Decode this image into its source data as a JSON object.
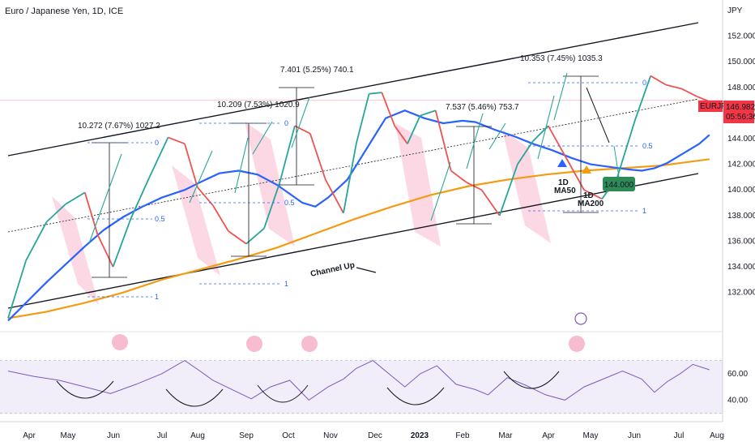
{
  "header": {
    "title": "Euro / Japanese Yen, 1D, ICE"
  },
  "chart_data": {
    "type": "line",
    "symbol": "EURJPY",
    "currency_label": "JPY",
    "price_axis": {
      "range": [
        129.2,
        154.5
      ],
      "ticks": [
        "152.000",
        "150.000",
        "148.000",
        "146.000",
        "144.000",
        "142.000",
        "140.000",
        "138.000",
        "136.000",
        "134.000",
        "132.000"
      ]
    },
    "rsi_axis": {
      "range": [
        28,
        82
      ],
      "ticks": [
        "60.00",
        "40.00"
      ]
    },
    "x_axis": {
      "labels": [
        "Apr",
        "May",
        "Jun",
        "Jul",
        "Aug",
        "Sep",
        "Oct",
        "Nov",
        "Dec",
        "2023",
        "Feb",
        "Mar",
        "Apr",
        "May",
        "Jun",
        "Jul",
        "Aug"
      ]
    },
    "last_price": "146.982",
    "last_price_time": "05:56:36",
    "target": "144.000",
    "series": [
      {
        "name": "",
        "color": "#2962ff",
        "x": [
          0,
          14,
          30,
          45,
          60,
          75,
          90,
          105,
          120,
          138,
          150,
          165,
          180,
          195,
          210,
          220,
          230,
          240,
          250,
          265,
          275,
          285,
          295,
          310,
          325,
          340,
          355,
          365,
          380,
          395,
          410,
          425,
          440,
          455,
          470,
          485,
          495,
          505,
          515,
          530,
          540,
          548
        ],
        "values": [
          129.8,
          131.2,
          132.8,
          134.2,
          135.6,
          136.9,
          137.9,
          138.7,
          139.4,
          140.0,
          140.6,
          141.3,
          141.5,
          141.2,
          140.4,
          139.7,
          139.0,
          138.7,
          139.4,
          140.8,
          142.4,
          144.0,
          145.6,
          146.2,
          145.6,
          145.2,
          145.4,
          145.3,
          144.7,
          144.2,
          143.6,
          143.1,
          142.5,
          142.0,
          141.8,
          141.6,
          141.5,
          141.7,
          142.1,
          143.0,
          143.6,
          144.3
        ]
      },
      {
        "name": "",
        "color": "#f39c12",
        "x": [
          0,
          30,
          60,
          90,
          120,
          150,
          180,
          210,
          240,
          270,
          300,
          330,
          360,
          390,
          420,
          450,
          480,
          510,
          548
        ],
        "values": [
          130.0,
          130.5,
          131.2,
          132.0,
          133.0,
          133.8,
          134.6,
          135.5,
          136.6,
          137.7,
          138.7,
          139.6,
          140.3,
          140.8,
          141.2,
          141.5,
          141.7,
          141.9,
          142.4
        ]
      },
      {
        "name": "",
        "color": "#131722",
        "x": [
          0,
          14,
          30,
          45,
          60,
          70,
          82,
          96,
          110,
          125,
          138,
          148,
          160,
          172,
          186,
          200,
          212,
          224,
          236,
          248,
          262,
          272,
          282,
          292,
          302,
          312,
          322,
          334,
          346,
          358,
          370,
          384,
          398,
          410,
          422,
          436,
          450,
          464,
          476,
          490,
          502,
          514,
          526,
          538,
          548
        ],
        "values": [
          130.0,
          134.5,
          137.5,
          138.9,
          139.8,
          136.5,
          134.0,
          137.8,
          140.9,
          144.1,
          143.6,
          140.2,
          138.8,
          136.8,
          135.8,
          137.0,
          140.5,
          145.0,
          144.4,
          140.8,
          138.2,
          143.6,
          147.5,
          147.6,
          145.0,
          143.6,
          145.8,
          146.2,
          141.5,
          140.6,
          140.0,
          138.0,
          142.0,
          143.8,
          145.0,
          142.5,
          140.0,
          139.3,
          141.0,
          145.5,
          148.9,
          148.2,
          147.9,
          147.3,
          146.9
        ]
      }
    ],
    "rsi": {
      "x": [
        0,
        20,
        40,
        60,
        80,
        100,
        120,
        138,
        150,
        160,
        175,
        190,
        205,
        220,
        235,
        250,
        262,
        272,
        285,
        300,
        310,
        322,
        335,
        350,
        365,
        375,
        390,
        405,
        420,
        435,
        450,
        465,
        480,
        495,
        505,
        515,
        525,
        535,
        548
      ],
      "values": [
        62,
        58,
        55,
        50,
        45,
        52,
        60,
        70,
        62,
        55,
        48,
        41,
        50,
        55,
        40,
        50,
        56,
        64,
        70,
        58,
        50,
        60,
        66,
        52,
        48,
        44,
        57,
        51,
        44,
        40,
        50,
        56,
        62,
        56,
        46,
        54,
        60,
        67,
        63
      ]
    },
    "annotations": [
      "10.272 (7.67%) 1027.2",
      "10.209 (7.53%) 1020.9",
      "7.401 (5.25%) 740.1",
      "7.537 (5.46%) 753.7",
      "10.353 (7.45%) 1035.3",
      "Channel Up",
      "1D MA50",
      "1D MA200"
    ],
    "fib_labels": [
      "0",
      "0.5",
      "1"
    ]
  }
}
